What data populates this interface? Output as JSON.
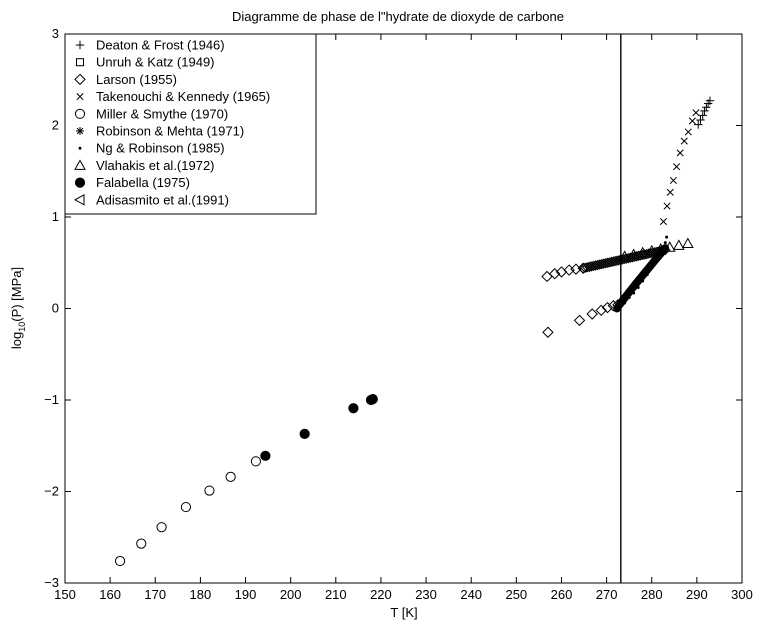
{
  "chart_data": {
    "type": "scatter",
    "title": "Diagramme de phase de l\"hydrate de dioxyde de carbone",
    "xlabel": "T [K]",
    "ylabel": {
      "base": "log",
      "sub": "10",
      "rest": "(P) [MPa]"
    },
    "xlim": [
      150,
      300
    ],
    "ylim": [
      -3,
      3
    ],
    "xticks": [
      150,
      160,
      170,
      180,
      190,
      200,
      210,
      220,
      230,
      240,
      250,
      260,
      270,
      280,
      290,
      300
    ],
    "yticks": [
      -3,
      -2,
      -1,
      0,
      1,
      2,
      3
    ],
    "grid": false,
    "legend_position": "top-left",
    "vertical_line_x": 273.15,
    "series": [
      {
        "name": "Deaton & Frost (1946)",
        "marker": "plus",
        "x": [
          290.3,
          290.8,
          291.3,
          291.7,
          292.1,
          292.5,
          292.9
        ],
        "y": [
          2.01,
          2.06,
          2.11,
          2.16,
          2.2,
          2.24,
          2.27
        ]
      },
      {
        "name": "Unruh & Katz (1949)",
        "marker": "square",
        "x": [],
        "y": []
      },
      {
        "name": "Larson (1955)",
        "marker": "diamond",
        "x": [
          256.8,
          258.5,
          260.0,
          261.7,
          263.2,
          264.8,
          257.0,
          264.0,
          266.8,
          268.8,
          270.2,
          271.5,
          272.5
        ],
        "y": [
          0.35,
          0.38,
          0.4,
          0.42,
          0.43,
          0.44,
          -0.26,
          -0.13,
          -0.06,
          -0.02,
          0.01,
          0.03,
          0.04
        ]
      },
      {
        "name": "Takenouchi & Kennedy (1965)",
        "marker": "x",
        "x": [
          282.6,
          283.4,
          284.1,
          284.8,
          285.5,
          286.3,
          287.2,
          288.1,
          289.0,
          289.8
        ],
        "y": [
          0.95,
          1.12,
          1.27,
          1.4,
          1.55,
          1.7,
          1.83,
          1.93,
          2.05,
          2.14
        ]
      },
      {
        "name": "Miller & Smythe (1970)",
        "marker": "circle",
        "x": [
          162.2,
          166.9,
          171.4,
          176.8,
          182.0,
          186.7,
          192.3
        ],
        "y": [
          -2.76,
          -2.57,
          -2.39,
          -2.17,
          -1.99,
          -1.84,
          -1.67
        ]
      },
      {
        "name": "Robinson & Mehta (1971)",
        "marker": "star",
        "x": [],
        "y": []
      },
      {
        "name": "Ng & Robinson (1985)",
        "marker": "dot",
        "x": [
          274.0,
          275.0,
          276.0,
          277.0,
          278.0,
          279.0,
          280.0,
          281.0,
          282.0,
          282.5,
          283.0,
          283.3
        ],
        "y": [
          0.06,
          0.12,
          0.17,
          0.23,
          0.3,
          0.37,
          0.44,
          0.52,
          0.61,
          0.66,
          0.72,
          0.78
        ]
      },
      {
        "name": "Vlahakis et al.(1972)",
        "marker": "triangle-up",
        "x": [
          274.0,
          276.0,
          278.0,
          280.0,
          282.0,
          284.0,
          286.0,
          288.0
        ],
        "y": [
          0.57,
          0.59,
          0.61,
          0.63,
          0.65,
          0.67,
          0.69,
          0.71
        ]
      },
      {
        "name": "Falabella (1975)",
        "marker": "filled-circle",
        "x": [
          194.4,
          203.1,
          213.9,
          217.8,
          218.2
        ],
        "y": [
          -1.61,
          -1.37,
          -1.09,
          -1.0,
          -0.99
        ]
      },
      {
        "name": "Adisasmito et al.(1991)",
        "marker": "triangle-left",
        "x": [],
        "y": []
      }
    ],
    "cloud_points": {
      "upper_branch_x_range": [
        264.8,
        283.0
      ],
      "upper_branch_y_range": [
        0.44,
        0.64
      ],
      "lower_branch_x_range": [
        272.3,
        283.0
      ],
      "lower_branch_y_range": [
        0.0,
        0.66
      ]
    }
  }
}
